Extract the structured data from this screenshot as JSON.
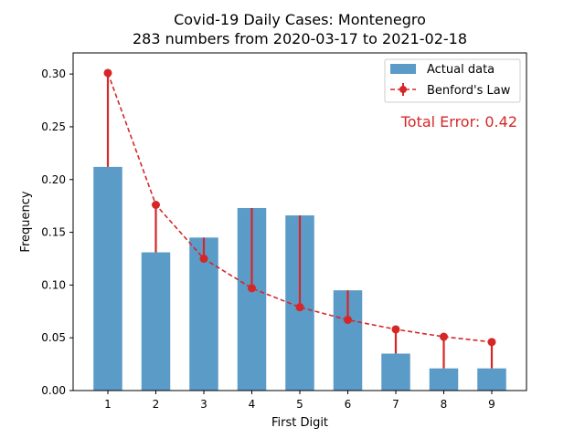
{
  "chart_data": {
    "type": "bar",
    "title": "Covid-19 Daily Cases: Montenegro",
    "subtitle": "283 numbers from 2020-03-17 to 2021-02-18",
    "xlabel": "First Digit",
    "ylabel": "Frequency",
    "categories": [
      "1",
      "2",
      "3",
      "4",
      "5",
      "6",
      "7",
      "8",
      "9"
    ],
    "ylim": [
      0,
      0.32
    ],
    "yticks": [
      "0.00",
      "0.05",
      "0.10",
      "0.15",
      "0.20",
      "0.25",
      "0.30"
    ],
    "series": [
      {
        "name": "Actual data",
        "kind": "bar",
        "color": "#5b9bc7",
        "values": [
          0.212,
          0.131,
          0.145,
          0.173,
          0.166,
          0.095,
          0.035,
          0.021,
          0.021
        ]
      },
      {
        "name": "Benford's Law",
        "kind": "line",
        "color": "#d62728",
        "values": [
          0.301,
          0.176,
          0.125,
          0.097,
          0.079,
          0.067,
          0.058,
          0.051,
          0.046
        ]
      }
    ],
    "annotation": "Total Error: 0.42",
    "annotation_color": "#d62728",
    "legend_position": "top-right",
    "grid": false
  }
}
